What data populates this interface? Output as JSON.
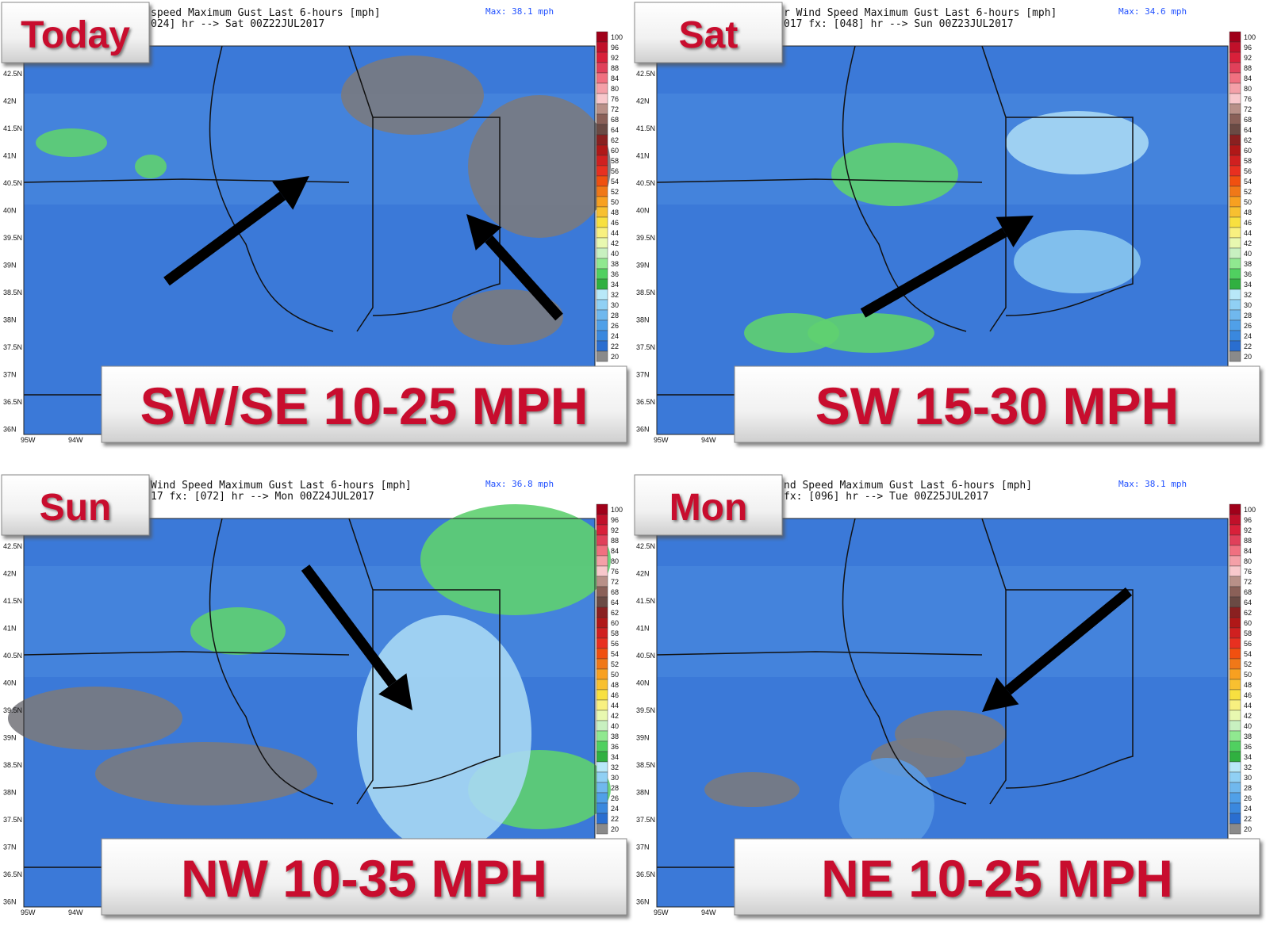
{
  "panels": [
    {
      "label": "Today",
      "header1": "speed Maximum Gust Last 6-hours [mph]",
      "header2": "024] hr --> Sat 00Z22JUL2017",
      "max": "Max: 38.1 mph",
      "caption": "SW/SE 10-25 MPH"
    },
    {
      "label": "Sat",
      "header1": "r Wind Speed Maximum Gust Last 6-hours [mph]",
      "header2": "017 fx: [048] hr --> Sun 00Z23JUL2017",
      "max": "Max: 34.6 mph",
      "caption": "SW 15-30 MPH"
    },
    {
      "label": "Sun",
      "header1": "Wind Speed Maximum Gust Last 6-hours [mph]",
      "header2": "17 fx: [072] hr --> Mon 00Z24JUL2017",
      "max": "Max: 36.8 mph",
      "caption": "NW 10-35 MPH"
    },
    {
      "label": "Mon",
      "header1": "nd Speed Maximum Gust Last 6-hours [mph]",
      "header2": "fx: [096] hr --> Tue 00Z25JUL2017",
      "max": "Max: 38.1 mph",
      "caption": "NE 10-25 MPH"
    }
  ],
  "latitudes": [
    "42.5N",
    "42N",
    "41.5N",
    "41N",
    "40.5N",
    "40N",
    "39.5N",
    "39N",
    "38.5N",
    "38N",
    "37.5N",
    "37N",
    "36.5N",
    "36N"
  ],
  "longitudes": [
    "95W",
    "94W"
  ],
  "colorbar": [
    "100",
    "96",
    "92",
    "88",
    "84",
    "80",
    "76",
    "72",
    "68",
    "64",
    "62",
    "60",
    "58",
    "56",
    "54",
    "52",
    "50",
    "48",
    "46",
    "44",
    "42",
    "40",
    "38",
    "36",
    "34",
    "32",
    "30",
    "28",
    "26",
    "24",
    "22",
    "20"
  ]
}
